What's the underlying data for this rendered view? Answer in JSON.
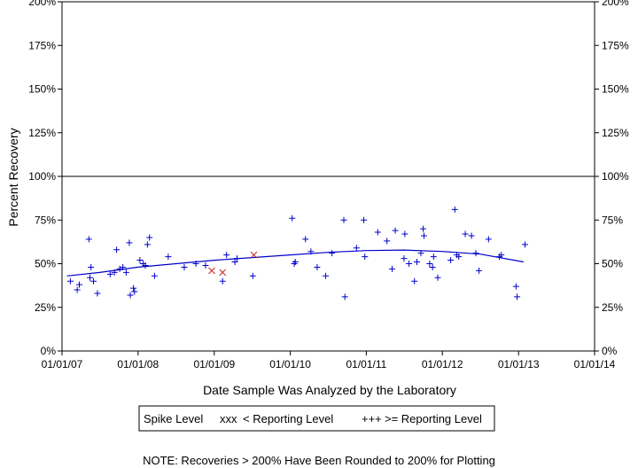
{
  "chart_data": {
    "type": "scatter",
    "xlabel": "Date Sample Was Analyzed by the Laboratory",
    "ylabel": "Percent Recovery",
    "x_ticks": [
      "01/01/07",
      "01/01/08",
      "01/01/09",
      "01/01/10",
      "01/01/11",
      "01/01/12",
      "01/01/13",
      "01/01/14"
    ],
    "y_ticks": [
      "0%",
      "25%",
      "50%",
      "75%",
      "100%",
      "125%",
      "150%",
      "175%",
      "200%"
    ],
    "xlim": [
      "2007-01-01",
      "2014-01-01"
    ],
    "ylim": [
      0,
      200
    ],
    "reference_line": 100,
    "legend": {
      "title": "Spike Level",
      "entries": [
        {
          "marker": "xxx",
          "label": "< Reporting Level",
          "color": "#cc2222"
        },
        {
          "marker": "+++",
          "label": ">= Reporting Level",
          "color": "#0000cc"
        }
      ]
    },
    "series": [
      {
        "name": "< Reporting Level",
        "marker": "x",
        "color": "#cc2222",
        "points": [
          {
            "x": "2008-12-20",
            "y": 46
          },
          {
            "x": "2009-02-10",
            "y": 45
          },
          {
            "x": "2009-07-10",
            "y": 55
          }
        ]
      },
      {
        "name": ">= Reporting Level",
        "marker": "+",
        "color": "#0000cc",
        "points": [
          {
            "x": "2007-02-10",
            "y": 40
          },
          {
            "x": "2007-03-15",
            "y": 35
          },
          {
            "x": "2007-03-25",
            "y": 38
          },
          {
            "x": "2007-05-10",
            "y": 64
          },
          {
            "x": "2007-05-15",
            "y": 42
          },
          {
            "x": "2007-05-20",
            "y": 48
          },
          {
            "x": "2007-06-01",
            "y": 40
          },
          {
            "x": "2007-06-20",
            "y": 33
          },
          {
            "x": "2007-08-20",
            "y": 44
          },
          {
            "x": "2007-09-10",
            "y": 45
          },
          {
            "x": "2007-09-20",
            "y": 58
          },
          {
            "x": "2007-10-05",
            "y": 47
          },
          {
            "x": "2007-10-20",
            "y": 48
          },
          {
            "x": "2007-11-05",
            "y": 45
          },
          {
            "x": "2007-11-20",
            "y": 62
          },
          {
            "x": "2007-11-25",
            "y": 32
          },
          {
            "x": "2007-12-10",
            "y": 36
          },
          {
            "x": "2007-12-15",
            "y": 34
          },
          {
            "x": "2008-01-10",
            "y": 52
          },
          {
            "x": "2008-01-25",
            "y": 50
          },
          {
            "x": "2008-02-05",
            "y": 49
          },
          {
            "x": "2008-02-15",
            "y": 61
          },
          {
            "x": "2008-02-25",
            "y": 65
          },
          {
            "x": "2008-03-20",
            "y": 43
          },
          {
            "x": "2008-05-25",
            "y": 54
          },
          {
            "x": "2008-08-10",
            "y": 48
          },
          {
            "x": "2008-10-05",
            "y": 50
          },
          {
            "x": "2008-11-20",
            "y": 49
          },
          {
            "x": "2009-02-10",
            "y": 40
          },
          {
            "x": "2009-03-01",
            "y": 55
          },
          {
            "x": "2009-04-10",
            "y": 51
          },
          {
            "x": "2009-04-20",
            "y": 53
          },
          {
            "x": "2009-07-05",
            "y": 43
          },
          {
            "x": "2010-01-10",
            "y": 76
          },
          {
            "x": "2010-01-20",
            "y": 50
          },
          {
            "x": "2010-01-25",
            "y": 51
          },
          {
            "x": "2010-03-15",
            "y": 64
          },
          {
            "x": "2010-04-10",
            "y": 57
          },
          {
            "x": "2010-05-10",
            "y": 48
          },
          {
            "x": "2010-06-20",
            "y": 43
          },
          {
            "x": "2010-07-20",
            "y": 56
          },
          {
            "x": "2010-09-15",
            "y": 75
          },
          {
            "x": "2010-09-20",
            "y": 31
          },
          {
            "x": "2010-11-15",
            "y": 59
          },
          {
            "x": "2010-12-20",
            "y": 75
          },
          {
            "x": "2010-12-25",
            "y": 54
          },
          {
            "x": "2011-02-25",
            "y": 68
          },
          {
            "x": "2011-04-10",
            "y": 63
          },
          {
            "x": "2011-05-05",
            "y": 47
          },
          {
            "x": "2011-05-20",
            "y": 69
          },
          {
            "x": "2011-07-01",
            "y": 53
          },
          {
            "x": "2011-07-05",
            "y": 67
          },
          {
            "x": "2011-07-25",
            "y": 50
          },
          {
            "x": "2011-08-20",
            "y": 40
          },
          {
            "x": "2011-09-01",
            "y": 51
          },
          {
            "x": "2011-09-20",
            "y": 56
          },
          {
            "x": "2011-10-01",
            "y": 70
          },
          {
            "x": "2011-10-05",
            "y": 66
          },
          {
            "x": "2011-11-01",
            "y": 50
          },
          {
            "x": "2011-11-15",
            "y": 48
          },
          {
            "x": "2011-11-20",
            "y": 54
          },
          {
            "x": "2011-12-10",
            "y": 42
          },
          {
            "x": "2012-02-10",
            "y": 52
          },
          {
            "x": "2012-03-01",
            "y": 81
          },
          {
            "x": "2012-03-10",
            "y": 55
          },
          {
            "x": "2012-03-20",
            "y": 54
          },
          {
            "x": "2012-04-20",
            "y": 67
          },
          {
            "x": "2012-05-20",
            "y": 66
          },
          {
            "x": "2012-06-10",
            "y": 56
          },
          {
            "x": "2012-06-25",
            "y": 46
          },
          {
            "x": "2012-08-10",
            "y": 64
          },
          {
            "x": "2012-10-01",
            "y": 54
          },
          {
            "x": "2012-10-10",
            "y": 55
          },
          {
            "x": "2012-12-20",
            "y": 37
          },
          {
            "x": "2012-12-25",
            "y": 31
          },
          {
            "x": "2013-02-01",
            "y": 61
          }
        ]
      }
    ],
    "trend_line": {
      "color": "#0000cc",
      "points": [
        {
          "x": "2007-01-25",
          "y": 43
        },
        {
          "x": "2007-07-01",
          "y": 45
        },
        {
          "x": "2008-01-01",
          "y": 48
        },
        {
          "x": "2008-07-01",
          "y": 50
        },
        {
          "x": "2009-01-01",
          "y": 52
        },
        {
          "x": "2009-07-01",
          "y": 53.5
        },
        {
          "x": "2010-01-01",
          "y": 55
        },
        {
          "x": "2010-07-01",
          "y": 56.5
        },
        {
          "x": "2011-01-01",
          "y": 57.5
        },
        {
          "x": "2011-07-01",
          "y": 57.8
        },
        {
          "x": "2012-01-01",
          "y": 57
        },
        {
          "x": "2012-07-01",
          "y": 55.5
        },
        {
          "x": "2013-01-25",
          "y": 51
        }
      ]
    },
    "note": "NOTE: Recoveries > 200% Have Been Rounded to 200% for Plotting"
  }
}
